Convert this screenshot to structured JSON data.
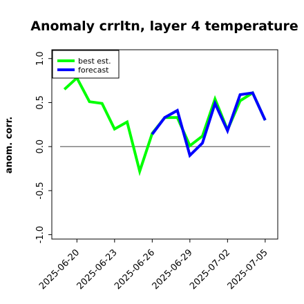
{
  "chart_data": {
    "type": "line",
    "title": "Anomaly crrltn, layer 4 temperature",
    "ylabel": "anom. corr.",
    "xlabel": "",
    "ylim": [
      -1.05,
      1.1
    ],
    "yticks": [
      -1.0,
      -0.5,
      0.0,
      0.5,
      1.0
    ],
    "ytick_labels": [
      "-1.0",
      "-0.5",
      "0.0",
      "0.5",
      "1.0"
    ],
    "xlim": [
      "2025-06-18",
      "2025-07-06"
    ],
    "xticks": [
      "2025-06-20",
      "2025-06-23",
      "2025-06-26",
      "2025-06-29",
      "2025-07-02",
      "2025-07-05"
    ],
    "xtick_labels": [
      "2025-06-20",
      "2025-06-23",
      "2025-06-26",
      "2025-06-29",
      "2025-07-02",
      "2025-07-05"
    ],
    "highlight_tick": "2025-06-26",
    "highlight_color": "#228B22",
    "zero_line": 0.0,
    "grid": false,
    "legend_placement": "top-left",
    "series": [
      {
        "name": "best est.",
        "color": "#00ff00",
        "x": [
          "2025-06-19",
          "2025-06-20",
          "2025-06-21",
          "2025-06-22",
          "2025-06-23",
          "2025-06-24",
          "2025-06-25",
          "2025-06-26",
          "2025-06-27",
          "2025-06-28",
          "2025-06-29",
          "2025-06-30",
          "2025-07-01",
          "2025-07-02",
          "2025-07-03",
          "2025-07-04",
          "2025-07-05"
        ],
        "values": [
          0.65,
          0.78,
          0.51,
          0.49,
          0.2,
          0.28,
          -0.28,
          0.15,
          0.33,
          0.33,
          0.01,
          0.12,
          0.54,
          0.19,
          0.52,
          0.61,
          0.3
        ]
      },
      {
        "name": "forecast",
        "color": "#0000ff",
        "x": [
          "2025-06-26",
          "2025-06-27",
          "2025-06-28",
          "2025-06-29",
          "2025-06-30",
          "2025-07-01",
          "2025-07-02",
          "2025-07-03",
          "2025-07-04",
          "2025-07-05"
        ],
        "values": [
          0.14,
          0.33,
          0.41,
          -0.1,
          0.04,
          0.49,
          0.18,
          0.59,
          0.61,
          0.3
        ]
      }
    ]
  }
}
